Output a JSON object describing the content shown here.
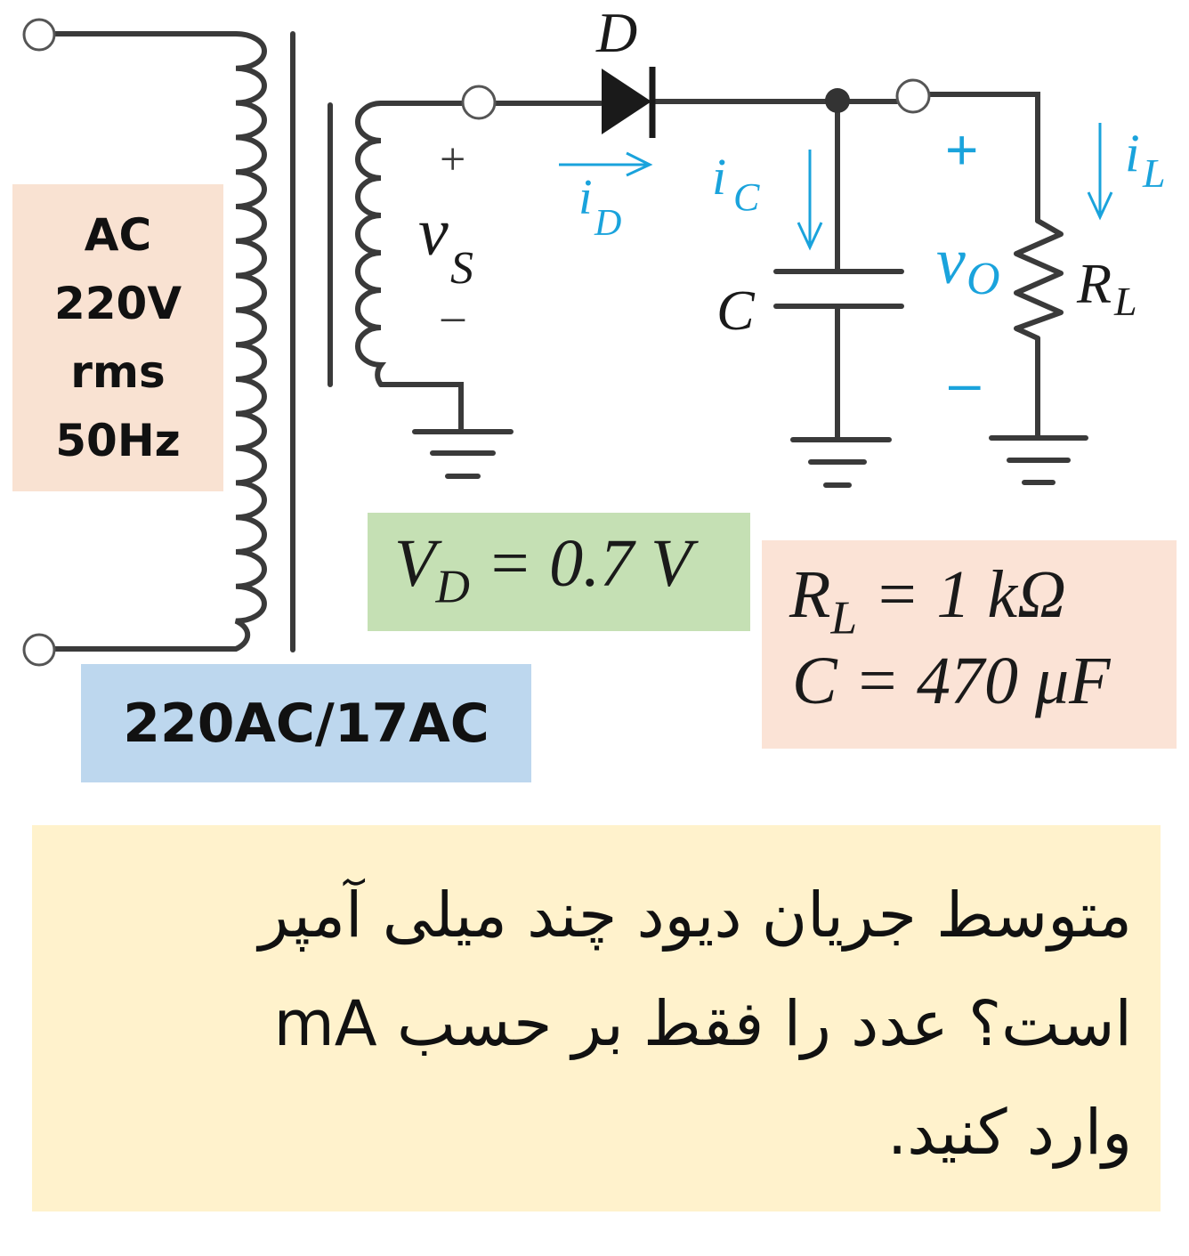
{
  "source": {
    "lines": [
      "AC",
      "220V",
      "rms",
      "50Hz"
    ]
  },
  "transformer": {
    "label": "220AC/17AC"
  },
  "labels": {
    "diode": "D",
    "id_main": "i",
    "id_sub": "D",
    "vs_main": "v",
    "vs_sub": "S",
    "vs_plus": "+",
    "vs_minus": "–",
    "ic_main": "i",
    "ic_sub": "C",
    "cap": "C",
    "vo_main": "v",
    "vo_sub": "O",
    "vo_plus": "+",
    "vo_minus": "–",
    "il_main": "i",
    "il_sub": "L",
    "rl_main": "R",
    "rl_sub": "L"
  },
  "params": {
    "vd_main": "V",
    "vd_sub": "D",
    "vd_rest": " = 0.7 V",
    "rl_main": "R",
    "rl_sub": "L",
    "rl_rest": " = 1 kΩ",
    "c_text": "C = 470 μF"
  },
  "question": {
    "line1": "متوسط جریان دیود چند میلی آمپر",
    "line2": "است؟ عدد را فقط بر حسب mA",
    "line3": "وارد کنید."
  },
  "colors": {
    "wire": "#3a3a3a",
    "current_label": "#1aa3dc",
    "source_box": "#f9e2d2",
    "transformer_box": "#bdd7ee",
    "diode_box": "#c5e0b4",
    "rc_box": "#fbe3d6",
    "question_box": "#fff2cc"
  }
}
